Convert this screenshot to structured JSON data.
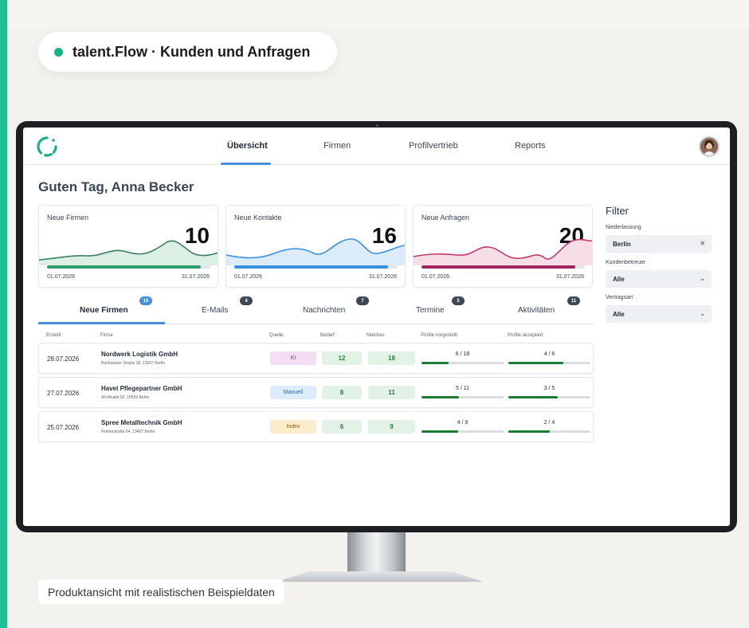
{
  "banner": {
    "title": "talent.Flow · Kunden und Anfragen"
  },
  "caption": "Produktansicht mit realistischen Beispieldaten",
  "nav": {
    "tabs": [
      {
        "label": "Übersicht",
        "active": true
      },
      {
        "label": "Firmen",
        "active": false
      },
      {
        "label": "Profilvertrieb",
        "active": false
      },
      {
        "label": "Reports",
        "active": false
      }
    ]
  },
  "greeting": "Guten Tag, Anna Becker",
  "cards": [
    {
      "label": "Neue Firmen",
      "value": "10",
      "date_from": "01.07.2026",
      "date_to": "31.07.2026",
      "progress": 0.94,
      "color": "#2e9e6a"
    },
    {
      "label": "Neue Kontakte",
      "value": "16",
      "date_from": "01.07.2026",
      "date_to": "31.07.2026",
      "progress": 0.94,
      "color": "#3a8fde"
    },
    {
      "label": "Neue Anfragen",
      "value": "20",
      "date_from": "01.07.2026",
      "date_to": "31.07.2026",
      "progress": 0.94,
      "color": "#a3235e"
    }
  ],
  "tabs": [
    {
      "label": "Neue Firmen",
      "count": "10",
      "active": true
    },
    {
      "label": "E-Mails",
      "count": "4",
      "active": false
    },
    {
      "label": "Nachrichten",
      "count": "7",
      "active": false
    },
    {
      "label": "Termine",
      "count": "5",
      "active": false
    },
    {
      "label": "Aktivitäten",
      "count": "11",
      "active": false
    }
  ],
  "table": {
    "headers": [
      "Erstellt",
      "Firma",
      "Quelle",
      "Bedarf",
      "Matches",
      "Profile vorgestellt",
      "Profile akzeptiert"
    ],
    "rows": [
      {
        "date": "28.07.2026",
        "name": "Nordwerk Logistik GmbH",
        "address": "Ruhlebener Straße 18, 13597 Berlin",
        "source": "KI",
        "source_bg": "#f3def3",
        "source_color": "#8a3c8c",
        "bedarf": "12",
        "matches": "18",
        "presented": "6 / 18",
        "presented_frac": 0.333,
        "accepted": "4 / 6",
        "accepted_frac": 0.667
      },
      {
        "date": "27.07.2026",
        "name": "Havel Pflegepartner GmbH",
        "address": "Alt-Moabit 92, 10559 Berlin",
        "source": "Manuell",
        "source_bg": "#ddecfb",
        "source_color": "#2f6fae",
        "bedarf": "8",
        "matches": "11",
        "presented": "5 / 11",
        "presented_frac": 0.455,
        "accepted": "3 / 5",
        "accepted_frac": 0.6
      },
      {
        "date": "25.07.2026",
        "name": "Spree Metalltechnik GmbH",
        "address": "Flottenstraße 54, 13407 Berlin",
        "source": "Index",
        "source_bg": "#fbeccb",
        "source_color": "#8c6418",
        "bedarf": "6",
        "matches": "9",
        "presented": "4 / 9",
        "presented_frac": 0.444,
        "accepted": "2 / 4",
        "accepted_frac": 0.5
      }
    ]
  },
  "filter": {
    "title": "Filter",
    "fields": [
      {
        "label": "Niederlassung",
        "value": "Berlin",
        "icon": "clear-icon"
      },
      {
        "label": "Kundenbetreuer",
        "value": "Alle",
        "icon": "chevron-down-icon"
      },
      {
        "label": "Vertragsart",
        "value": "Alle",
        "icon": "chevron-down-icon"
      }
    ]
  }
}
